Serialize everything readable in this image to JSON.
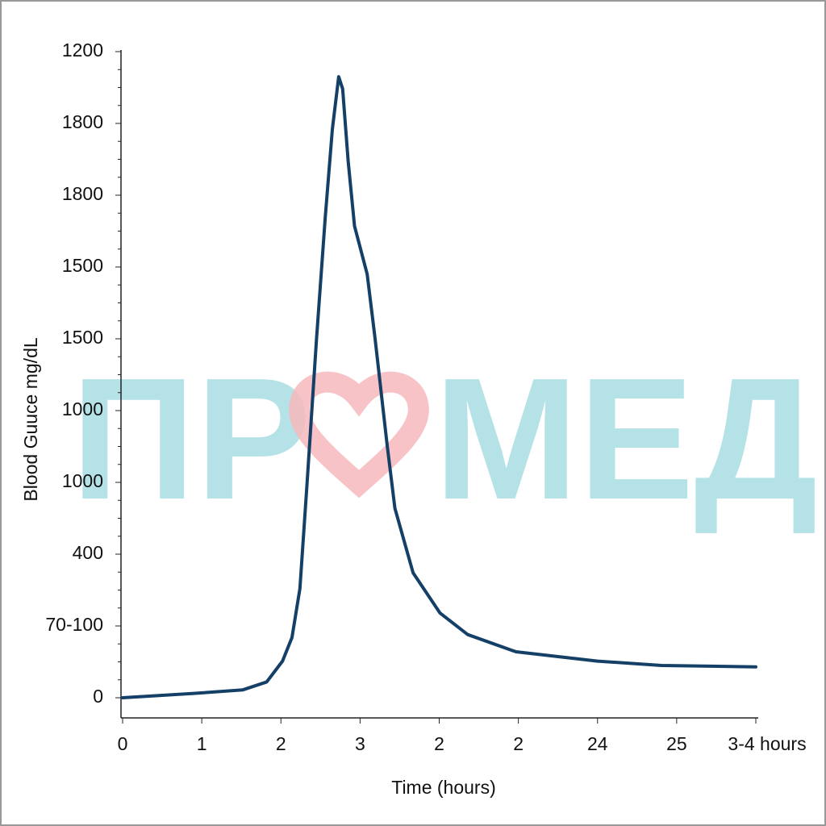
{
  "chart_data": {
    "type": "line",
    "x_label": "Time (hours)",
    "y_label": "Blood Guuce mg/dL",
    "x_categories": [
      "0",
      "1",
      "2",
      "3",
      "2",
      "2",
      "24",
      "25",
      "3-4 hours"
    ],
    "y_categories": [
      "0",
      "70-100",
      "400",
      "1000",
      "1000",
      "1500",
      "1500",
      "1800",
      "1800",
      "1200"
    ],
    "xlim": [
      0,
      8
    ],
    "ylim": [
      0,
      9
    ],
    "watermark": [
      "ПР",
      "МЕД"
    ],
    "series": [
      {
        "color": "#143f66",
        "x": [
          0,
          0.9,
          1.52,
          1.82,
          2.02,
          2.14,
          2.24,
          2.33,
          2.45,
          2.56,
          2.65,
          2.73,
          2.78,
          2.85,
          2.93,
          3.09,
          3.19,
          3.34,
          3.44,
          3.67,
          4.01,
          4.36,
          4.97,
          6.0,
          6.81,
          8.0
        ],
        "values": [
          0,
          0.06,
          0.11,
          0.22,
          0.51,
          0.84,
          1.52,
          2.98,
          5.0,
          6.69,
          7.92,
          8.65,
          8.48,
          7.47,
          6.57,
          5.9,
          5.0,
          3.54,
          2.64,
          1.74,
          1.18,
          0.88,
          0.64,
          0.51,
          0.45,
          0.43
        ]
      }
    ]
  }
}
